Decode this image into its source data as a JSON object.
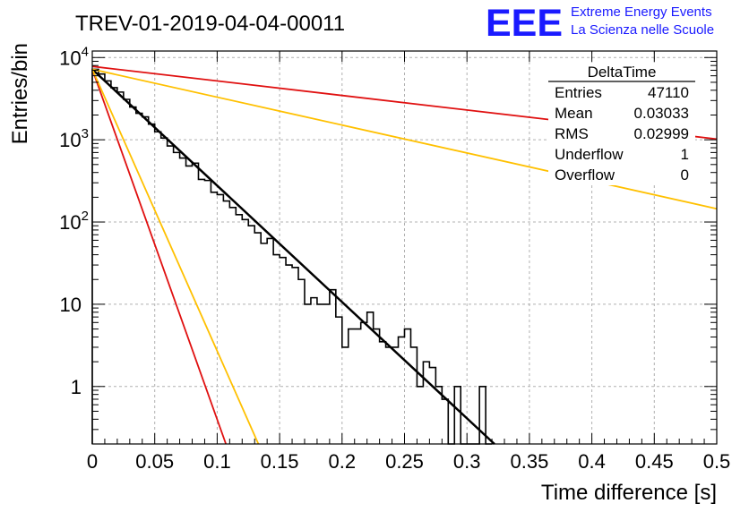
{
  "title": "TREV-01-2019-04-04-00011",
  "logo": {
    "mark": "EEE",
    "line1": "Extreme Energy Events",
    "line2": "La Scienza nelle Scuole",
    "color": "#1a1aff"
  },
  "stats_box": {
    "name": "DeltaTime",
    "rows": [
      {
        "label": "Entries",
        "value": "47110"
      },
      {
        "label": "Mean",
        "value": "0.03033"
      },
      {
        "label": "RMS",
        "value": "0.02999"
      },
      {
        "label": "Underflow",
        "value": "1"
      },
      {
        "label": "Overflow",
        "value": "0"
      }
    ]
  },
  "chart_data": {
    "type": "histogram",
    "title": "TREV-01-2019-04-04-00011",
    "xlabel": "Time difference [s]",
    "ylabel": "Entries/bin",
    "xlim": [
      0,
      0.5
    ],
    "ylim": [
      0.2,
      12000
    ],
    "yscale": "log",
    "grid": true,
    "x_ticks": [
      {
        "v": 0,
        "label": "0"
      },
      {
        "v": 0.05,
        "label": "0.05"
      },
      {
        "v": 0.1,
        "label": "0.1"
      },
      {
        "v": 0.15,
        "label": "0.15"
      },
      {
        "v": 0.2,
        "label": "0.2"
      },
      {
        "v": 0.25,
        "label": "0.25"
      },
      {
        "v": 0.3,
        "label": "0.3"
      },
      {
        "v": 0.35,
        "label": "0.35"
      },
      {
        "v": 0.4,
        "label": "0.4"
      },
      {
        "v": 0.45,
        "label": "0.45"
      },
      {
        "v": 0.5,
        "label": "0.5"
      }
    ],
    "y_ticks": [
      {
        "v": 1,
        "base": "1",
        "exp": ""
      },
      {
        "v": 10,
        "base": "10",
        "exp": ""
      },
      {
        "v": 100,
        "base": "10",
        "exp": "2"
      },
      {
        "v": 1000,
        "base": "10",
        "exp": "3"
      },
      {
        "v": 10000,
        "base": "10",
        "exp": "4"
      }
    ],
    "histogram": {
      "bin_width": 0.005,
      "color": "#000000",
      "values": [
        7200,
        6300,
        5200,
        4300,
        3800,
        3100,
        2500,
        2100,
        1900,
        1550,
        1250,
        1050,
        840,
        700,
        600,
        480,
        520,
        330,
        320,
        230,
        215,
        180,
        150,
        123,
        107,
        90,
        74,
        55,
        63,
        40,
        37,
        30,
        28,
        20,
        10,
        12,
        10,
        10,
        15,
        7,
        3,
        5,
        5,
        6,
        8,
        5,
        3.5,
        3,
        3,
        4,
        5,
        3,
        1,
        2,
        1.7,
        1,
        0.7,
        0,
        1,
        0,
        0,
        0,
        1,
        0
      ]
    },
    "fit_lines": [
      {
        "name": "fit",
        "color": "#000000",
        "x": [
          0,
          0.322
        ],
        "y": [
          7200,
          0.2
        ],
        "width": 2.5
      },
      {
        "name": "red-steep",
        "color": "#e01010",
        "x": [
          0,
          0.107
        ],
        "y": [
          7200,
          0.2
        ],
        "width": 1.8
      },
      {
        "name": "orange-steep",
        "color": "#ffc000",
        "x": [
          0,
          0.133
        ],
        "y": [
          7200,
          0.2
        ],
        "width": 1.8
      },
      {
        "name": "orange-shallow",
        "color": "#ffc000",
        "x": [
          0,
          0.5
        ],
        "y": [
          7200,
          145
        ],
        "width": 1.8
      },
      {
        "name": "red-shallow",
        "color": "#e01010",
        "x": [
          0,
          0.5
        ],
        "y": [
          7800,
          1020
        ],
        "width": 1.8
      }
    ]
  }
}
